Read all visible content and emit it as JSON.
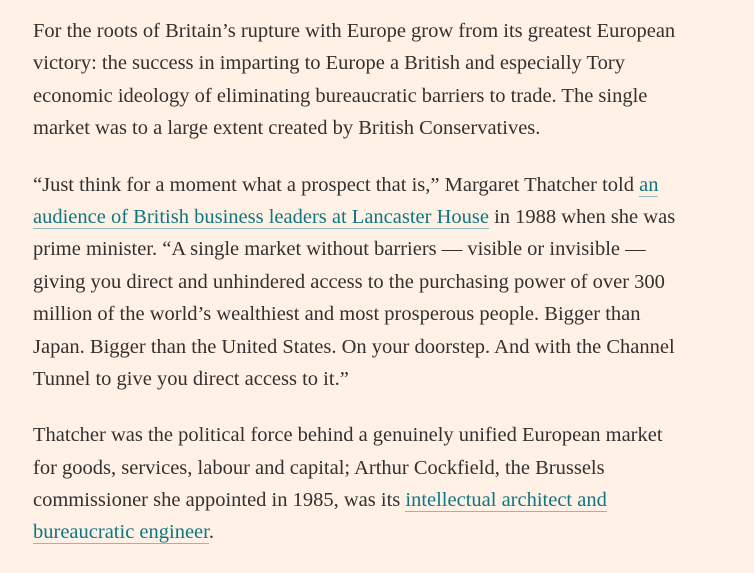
{
  "paragraphs": [
    {
      "lines": [
        [
          {
            "text": "For the roots of Britain’s rupture with Europe grow from its greatest European"
          }
        ],
        [
          {
            "text": "victory: the success in imparting to Europe a British and especially Tory"
          }
        ],
        [
          {
            "text": "economic ideology of eliminating bureaucratic barriers to trade. The single"
          }
        ],
        [
          {
            "text": "market was to a large extent created by British Conservatives."
          }
        ]
      ]
    },
    {
      "lines": [
        [
          {
            "text": "“Just think for a moment what a prospect that is,” Margaret Thatcher told "
          },
          {
            "link": "an"
          }
        ],
        [
          {
            "link": "audience of British business leaders at Lancaster House"
          },
          {
            "text": " in 1988 when she was"
          }
        ],
        [
          {
            "text": "prime minister. “A single market without barriers — visible or invisible —"
          }
        ],
        [
          {
            "text": "giving you direct and unhindered access to the purchasing power of over 300"
          }
        ],
        [
          {
            "text": "million of the world’s wealthiest and most prosperous people. Bigger than"
          }
        ],
        [
          {
            "text": "Japan. Bigger than the United States. On your doorstep. And with the Channel"
          }
        ],
        [
          {
            "text": "Tunnel to give you direct access to it.”"
          }
        ]
      ]
    },
    {
      "lines": [
        [
          {
            "text": "Thatcher was the political force behind a genuinely unified European market"
          }
        ],
        [
          {
            "text": "for goods, services, labour and capital; Arthur Cockfield, the Brussels"
          }
        ],
        [
          {
            "text": "commissioner she appointed in 1985, was its "
          },
          {
            "link": "intellectual architect and"
          }
        ],
        [
          {
            "link": "bureaucratic engineer"
          },
          {
            "text": "."
          }
        ]
      ]
    }
  ]
}
